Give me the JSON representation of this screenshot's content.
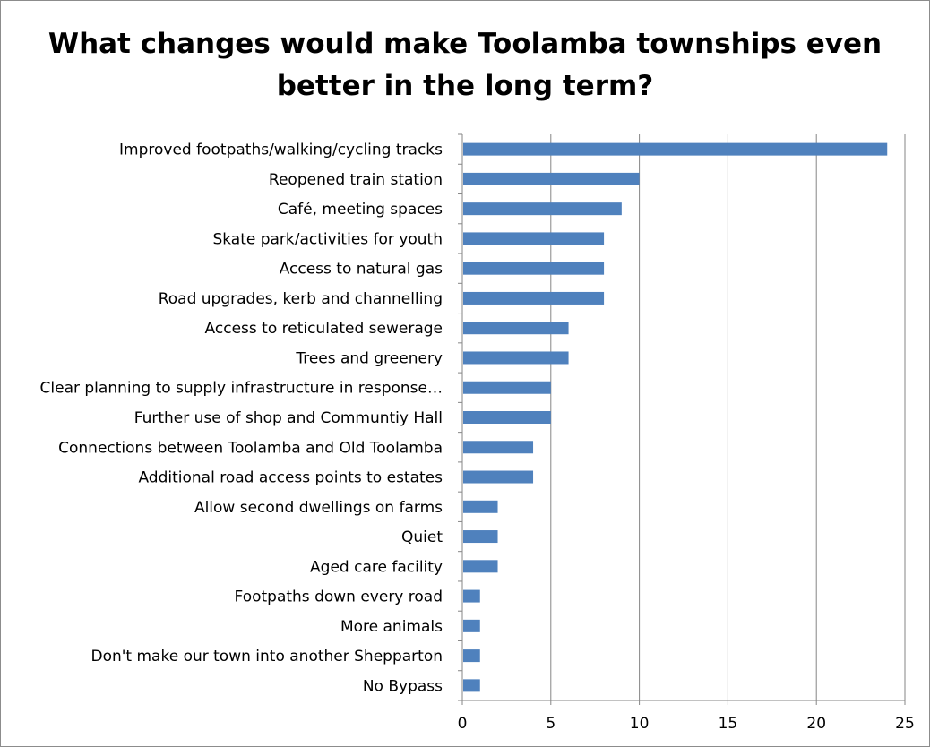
{
  "chart_data": {
    "type": "bar",
    "orientation": "horizontal",
    "title": "What changes would make Toolamba townships even better in the long term?",
    "xlim": [
      0,
      25
    ],
    "xticks": [
      0,
      5,
      10,
      15,
      20,
      25
    ],
    "grid": true,
    "categories": [
      "Improved footpaths/walking/cycling tracks",
      "Reopened train station",
      "Café, meeting spaces",
      "Skate park/activities for youth",
      "Access to natural gas",
      "Road upgrades, kerb and channelling",
      "Access to reticulated sewerage",
      "Trees and greenery",
      "Clear planning to supply infrastructure in response…",
      "Further use of shop and Communtiy Hall",
      "Connections between Toolamba and Old Toolamba",
      "Additional road access points to estates",
      "Allow second dwellings on farms",
      "Quiet",
      "Aged care facility",
      "Footpaths down every road",
      "More animals",
      "Don't make our town into another Shepparton",
      "No Bypass"
    ],
    "values": [
      24,
      10,
      9,
      8,
      8,
      8,
      6,
      6,
      5,
      5,
      4,
      4,
      2,
      2,
      2,
      1,
      1,
      1,
      1
    ],
    "bar_color": "#4f81bd"
  }
}
